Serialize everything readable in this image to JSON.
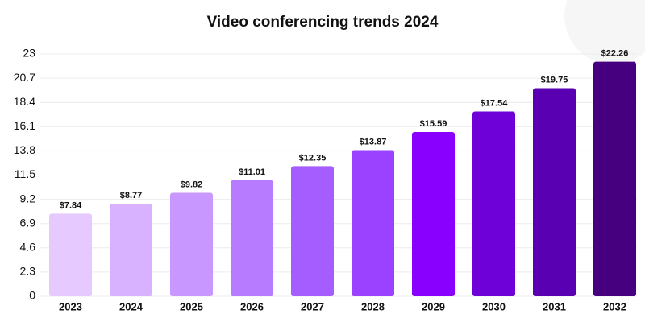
{
  "chart_data": {
    "type": "bar",
    "title": "Video conferencing trends 2024",
    "categories": [
      "2023",
      "2024",
      "2025",
      "2026",
      "2027",
      "2028",
      "2029",
      "2030",
      "2031",
      "2032"
    ],
    "values": [
      7.84,
      8.77,
      9.82,
      11.01,
      12.35,
      13.87,
      15.59,
      17.54,
      19.75,
      22.26
    ],
    "value_labels": [
      "$7.84",
      "$8.77",
      "$9.82",
      "$11.01",
      "$12.35",
      "$13.87",
      "$15.59",
      "$17.54",
      "$19.75",
      "$22.26"
    ],
    "colors": [
      "#e6c9ff",
      "#d8b1ff",
      "#c897ff",
      "#b67bff",
      "#a65dff",
      "#9a42ff",
      "#8a00ff",
      "#6e00d8",
      "#5a00b3",
      "#46007f"
    ],
    "ylim": [
      0,
      23
    ],
    "yticks": [
      0,
      2.3,
      4.6,
      6.9,
      9.2,
      11.5,
      13.8,
      16.1,
      18.4,
      20.7,
      23
    ],
    "grid": true
  }
}
